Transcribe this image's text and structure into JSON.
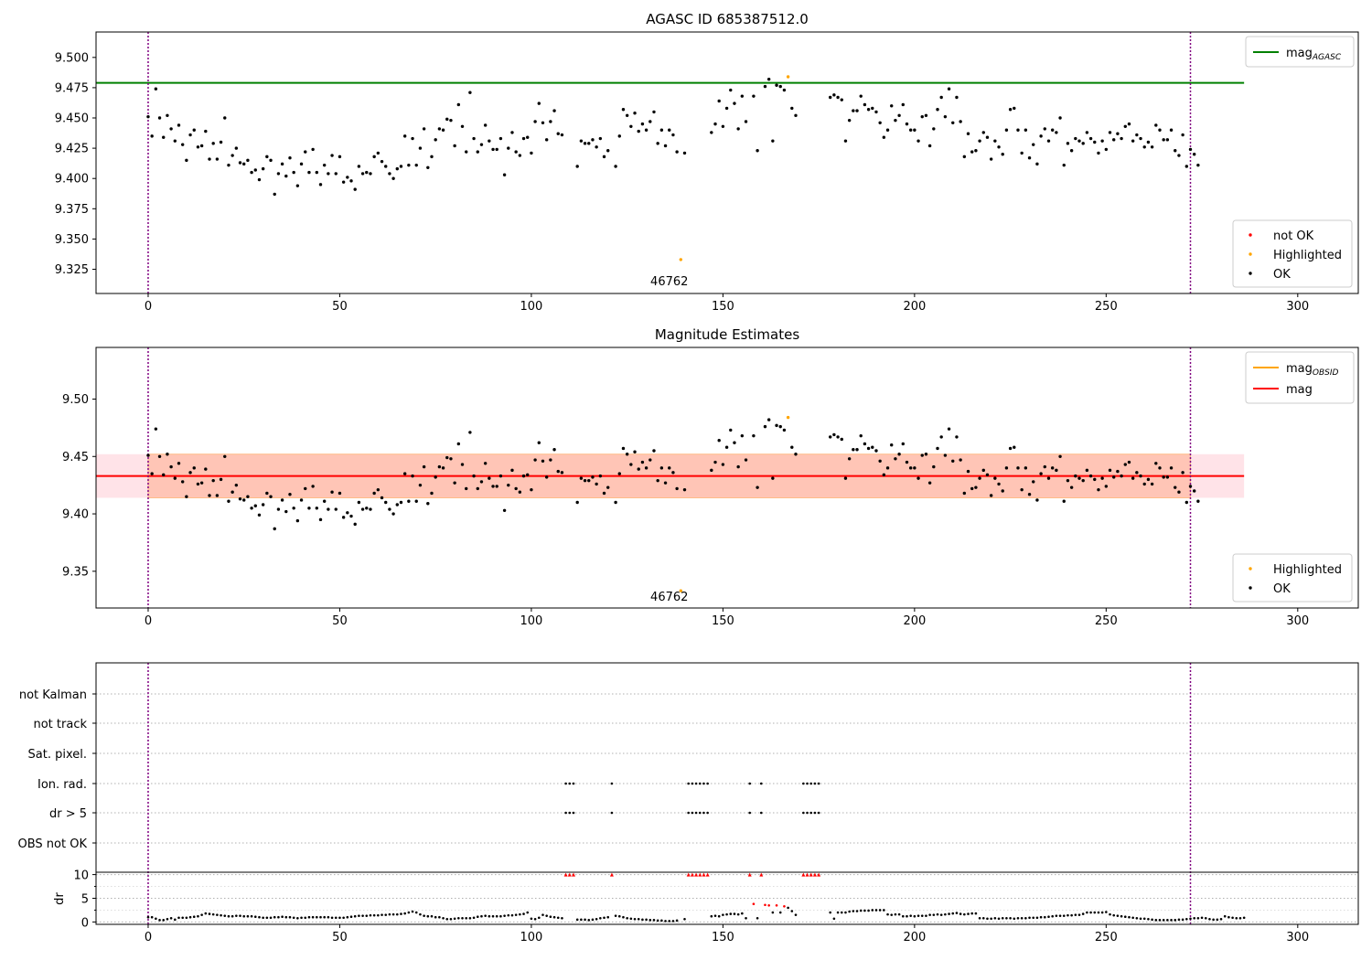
{
  "colors": {
    "agasc_line": "#008000",
    "obsid_line": "#ffa500",
    "mag_line": "#ff0000",
    "band_outer": "#ffc0cb",
    "band_inner": "#ffa07a",
    "not_ok": "#ff0000",
    "highlighted": "#ffa500",
    "ok": "#000000",
    "obs_boundary": "#800080",
    "grid": "#b0b0b0"
  },
  "chart_data": [
    {
      "type": "scatter",
      "title": "AGASC ID 685387512.0",
      "xlim": [
        -13.6,
        315.8
      ],
      "ylim": [
        9.305,
        9.521
      ],
      "xticks": [
        0,
        50,
        100,
        150,
        200,
        250,
        300
      ],
      "yticks": [
        9.325,
        9.35,
        9.375,
        9.4,
        9.425,
        9.45,
        9.475,
        9.5
      ],
      "ytick_labels": [
        "9.325",
        "9.350",
        "9.375",
        "9.400",
        "9.425",
        "9.450",
        "9.475",
        "9.500"
      ],
      "obs_boundaries": [
        0,
        272
      ],
      "obs_label": {
        "text": "46762",
        "x": 136
      },
      "hlines": [
        {
          "name": "mag_AGASC",
          "y": 9.479,
          "x0": -13.6,
          "x1": 286
        }
      ],
      "legend_top": [
        {
          "label": "mag",
          "sub": "AGASC",
          "color": "#008000",
          "kind": "line"
        }
      ],
      "legend_bottom": [
        {
          "label": "not OK",
          "color": "#ff0000",
          "kind": "dot"
        },
        {
          "label": "Highlighted",
          "color": "#ffa500",
          "kind": "dot"
        },
        {
          "label": "OK",
          "color": "#000000",
          "kind": "dot"
        }
      ],
      "highlighted": [
        [
          139,
          9.333
        ],
        [
          167,
          9.484
        ]
      ]
    },
    {
      "type": "scatter",
      "title": "Magnitude Estimates",
      "xlim": [
        -13.6,
        315.8
      ],
      "ylim": [
        9.318,
        9.545
      ],
      "xticks": [
        0,
        50,
        100,
        150,
        200,
        250,
        300
      ],
      "yticks": [
        9.35,
        9.4,
        9.45,
        9.5
      ],
      "ytick_labels": [
        "9.35",
        "9.40",
        "9.45",
        "9.50"
      ],
      "obs_boundaries": [
        0,
        272
      ],
      "obs_label": {
        "text": "46762",
        "x": 136
      },
      "mag": 9.433,
      "band_outer": [
        9.414,
        9.452,
        -13.6,
        286
      ],
      "band_inner": [
        9.414,
        9.452,
        0,
        272
      ],
      "legend_top": [
        {
          "label": "mag",
          "sub": "OBSID",
          "color": "#ffa500",
          "kind": "line"
        },
        {
          "label": "mag",
          "sub": "",
          "color": "#ff0000",
          "kind": "line"
        }
      ],
      "legend_bottom": [
        {
          "label": "Highlighted",
          "color": "#ffa500",
          "kind": "dot"
        },
        {
          "label": "OK",
          "color": "#000000",
          "kind": "dot"
        }
      ],
      "highlighted": [
        [
          139,
          9.333
        ],
        [
          167,
          9.484
        ]
      ]
    },
    {
      "type": "scatter",
      "title": "",
      "xlim": [
        -13.6,
        315.8
      ],
      "xticks": [
        0,
        50,
        100,
        150,
        200,
        250,
        300
      ],
      "flag_rows": [
        "not Kalman",
        "not track",
        "Sat. pixel.",
        "Ion. rad.",
        "dr > 5",
        "OBS not OK"
      ],
      "flagged_times": [
        109,
        110,
        111,
        121,
        141,
        142,
        143,
        144,
        145,
        146,
        157,
        160,
        171,
        172,
        173,
        174,
        175
      ],
      "dr_ylabel": "dr",
      "dr_yticks": [
        0,
        5,
        10
      ],
      "dr_ylim": [
        -0.5,
        10.5
      ],
      "obs_boundaries": [
        0,
        272
      ]
    }
  ],
  "mag_series": [
    9.451,
    9.435,
    9.474,
    9.45,
    9.434,
    9.452,
    9.441,
    9.431,
    9.444,
    9.428,
    9.415,
    9.436,
    9.44,
    9.426,
    9.427,
    9.439,
    9.416,
    9.429,
    9.416,
    9.43,
    9.45,
    9.411,
    9.419,
    9.425,
    9.413,
    9.412,
    9.415,
    9.405,
    9.407,
    9.399,
    9.408,
    9.418,
    9.415,
    9.387,
    9.404,
    9.412,
    9.402,
    9.417,
    9.405,
    9.394,
    9.412,
    9.422,
    9.405,
    9.424,
    9.405,
    9.395,
    9.411,
    9.404,
    9.419,
    9.404,
    9.418,
    9.397,
    9.401,
    9.398,
    9.391,
    9.41,
    9.404,
    9.405,
    9.404,
    9.418,
    9.421,
    9.414,
    9.41,
    9.404,
    9.4,
    9.408,
    9.41,
    9.435,
    9.411,
    9.433,
    9.411,
    9.425,
    9.441,
    9.409,
    9.418,
    9.432,
    9.441,
    9.44,
    9.449,
    9.448,
    9.427,
    9.461,
    9.443,
    9.422,
    9.471,
    9.433,
    9.422,
    9.428,
    9.444,
    9.431,
    9.424,
    9.424,
    9.433,
    9.403,
    9.425,
    9.438,
    9.422,
    9.419,
    9.433,
    9.434,
    9.421,
    9.447,
    9.462,
    9.446,
    9.432,
    9.447,
    9.456,
    9.437,
    9.436,
    null,
    null,
    null,
    9.41,
    9.431,
    9.429,
    9.429,
    9.432,
    9.426,
    9.433,
    9.418,
    9.423,
    null,
    9.41,
    9.435,
    9.457,
    9.452,
    9.443,
    9.454,
    9.439,
    9.445,
    9.44,
    9.447,
    9.455,
    9.429,
    9.44,
    9.427,
    9.44,
    9.436,
    9.422,
    null,
    9.421,
    null,
    null,
    null,
    null,
    null,
    null,
    9.438,
    9.445,
    9.464,
    9.443,
    9.458,
    9.473,
    9.462,
    9.441,
    9.468,
    9.447,
    null,
    9.468,
    9.423,
    null,
    9.476,
    9.482,
    9.431,
    9.477,
    9.476,
    9.473,
    9.484,
    9.458,
    9.452,
    null,
    null,
    null,
    null,
    null,
    null,
    null,
    null,
    9.467,
    9.469,
    9.467,
    9.465,
    9.431,
    9.448,
    9.456,
    9.456,
    9.468,
    9.461,
    9.457,
    9.458,
    9.455,
    9.446,
    9.434,
    9.44,
    9.46,
    9.448,
    9.452,
    9.461,
    9.445,
    9.44,
    9.44,
    9.431,
    9.451,
    9.452,
    9.427,
    9.441,
    9.457,
    9.467,
    9.451,
    9.474,
    9.446,
    9.467,
    9.447,
    9.418,
    9.437,
    9.422,
    9.423,
    9.431,
    9.438,
    9.434,
    9.416,
    9.431,
    9.426,
    9.42,
    9.44,
    9.457,
    9.458,
    9.44,
    9.421,
    9.44,
    9.417,
    9.428,
    9.412,
    9.435,
    9.441,
    9.431,
    9.44,
    9.438,
    9.45,
    9.411,
    9.429,
    9.423,
    9.433,
    9.431,
    9.429,
    9.438,
    9.433,
    9.43,
    9.421,
    9.431,
    9.424,
    9.438,
    9.432,
    9.437,
    9.433,
    9.443,
    9.445,
    9.431,
    9.436,
    9.433,
    9.426,
    9.43,
    9.426,
    9.444,
    9.44,
    9.432,
    9.432,
    9.44,
    9.423,
    9.419,
    9.436,
    9.41,
    9.424,
    9.42,
    9.411
  ],
  "dr_series": [
    1.0,
    1.0,
    0.7,
    0.4,
    0.4,
    0.6,
    0.8,
    0.5,
    0.9,
    0.9,
    0.9,
    1.0,
    1.1,
    1.2,
    1.5,
    1.8,
    1.7,
    1.6,
    1.5,
    1.4,
    1.3,
    1.2,
    1.2,
    1.3,
    1.3,
    1.2,
    1.2,
    1.2,
    1.1,
    1.0,
    0.9,
    0.9,
    0.9,
    1.0,
    1.0,
    1.1,
    1.0,
    1.0,
    0.9,
    0.8,
    0.9,
    0.9,
    1.0,
    1.0,
    1.0,
    1.0,
    1.0,
    1.0,
    0.9,
    0.9,
    0.9,
    0.9,
    1.0,
    1.1,
    1.2,
    1.3,
    1.3,
    1.3,
    1.4,
    1.4,
    1.4,
    1.5,
    1.5,
    1.6,
    1.6,
    1.6,
    1.7,
    1.8,
    2.0,
    2.2,
    2.0,
    1.6,
    1.3,
    1.2,
    1.2,
    1.0,
    1.0,
    0.8,
    0.6,
    0.6,
    0.7,
    0.8,
    0.8,
    0.8,
    0.8,
    0.9,
    1.1,
    1.2,
    1.3,
    1.2,
    1.2,
    1.2,
    1.2,
    1.3,
    1.4,
    1.4,
    1.5,
    1.6,
    1.7,
    2.0,
    0.7,
    0.6,
    0.9,
    1.5,
    1.3,
    1.1,
    1.0,
    0.9,
    0.8,
    null,
    null,
    null,
    0.5,
    0.5,
    0.5,
    0.4,
    0.5,
    0.6,
    0.8,
    0.9,
    1.0,
    null,
    1.3,
    1.2,
    1.0,
    0.8,
    0.7,
    0.6,
    0.6,
    0.5,
    0.5,
    0.4,
    0.4,
    0.3,
    0.3,
    0.2,
    0.2,
    0.2,
    0.3,
    null,
    0.6,
    null,
    null,
    null,
    null,
    null,
    null,
    1.2,
    1.3,
    1.2,
    1.5,
    1.6,
    1.7,
    1.7,
    1.6,
    1.8,
    0.8,
    null,
    3.8,
    0.8,
    null,
    3.6,
    3.5,
    2.0,
    3.5,
    2.0,
    3.3,
    3.0,
    2.3,
    1.5,
    null,
    null,
    null,
    null,
    null,
    null,
    null,
    null,
    2.0,
    0.7,
    2.0,
    2.0,
    2.0,
    2.2,
    2.3,
    2.3,
    2.4,
    2.4,
    2.4,
    2.5,
    2.5,
    2.5,
    2.5,
    1.6,
    1.5,
    1.6,
    1.6,
    1.2,
    1.2,
    1.3,
    1.2,
    1.3,
    1.3,
    1.3,
    1.5,
    1.5,
    1.6,
    1.5,
    1.6,
    1.7,
    1.8,
    1.9,
    1.7,
    1.6,
    1.7,
    1.8,
    1.8,
    0.8,
    0.8,
    0.7,
    0.7,
    0.8,
    0.7,
    0.8,
    0.8,
    0.8,
    0.7,
    0.8,
    0.8,
    0.8,
    0.9,
    0.9,
    0.9,
    1.0,
    1.0,
    1.1,
    1.2,
    1.3,
    1.3,
    1.3,
    1.4,
    1.4,
    1.5,
    1.5,
    1.7,
    2.0,
    2.0,
    2.0,
    2.0,
    2.0,
    2.1,
    1.6,
    1.4,
    1.3,
    1.2,
    1.1,
    1.0,
    0.9,
    0.8,
    0.7,
    0.7,
    0.6,
    0.5,
    0.4,
    0.4,
    0.4,
    0.4,
    0.4,
    0.4,
    0.5,
    0.5,
    0.6,
    0.7,
    0.8,
    0.8,
    0.9,
    0.8,
    0.6,
    0.5,
    0.5,
    0.6,
    1.2,
    1.0,
    0.9,
    0.8,
    0.8,
    0.9
  ]
}
